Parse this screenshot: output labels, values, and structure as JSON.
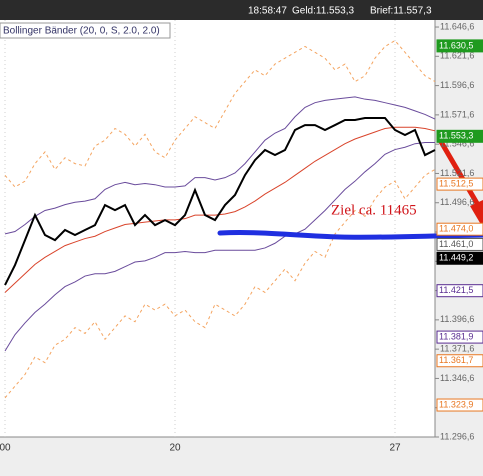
{
  "chart_data": {
    "type": "line",
    "header": [
      "18:58:47",
      "Geld:11.553,3",
      "Brief:11.557,3"
    ],
    "indicator_label": "Bollinger Bänder (20, 0, S, 2.0, 2.0)",
    "annotation": "Ziel ca. 11465",
    "categories": [
      "00",
      null,
      null,
      null,
      null,
      null,
      null,
      null,
      null,
      null,
      null,
      null,
      null,
      null,
      null,
      null,
      null,
      "20",
      null,
      null,
      null,
      null,
      null,
      null,
      null,
      null,
      null,
      null,
      null,
      null,
      null,
      null,
      null,
      null,
      null,
      null,
      null,
      null,
      null,
      "27",
      null,
      null,
      null,
      null
    ],
    "ylim": [
      11296.6,
      11652.6
    ],
    "yticks": [
      {
        "value": 11296.6,
        "label": "11.296,6"
      },
      {
        "value": 11321.6,
        "label": "11.321,6"
      },
      {
        "value": 11346.6,
        "label": "11.346,6"
      },
      {
        "value": 11371.6,
        "label": "11.371,6"
      },
      {
        "value": 11396.6,
        "label": "11.396,6"
      },
      {
        "value": 11421.6,
        "label": "11.421,6"
      },
      {
        "value": 11446.6,
        "label": "11.446,6"
      },
      {
        "value": 11471.6,
        "label": "11.471,6"
      },
      {
        "value": 11496.6,
        "label": "11.496,6"
      },
      {
        "value": 11521.6,
        "label": "11.521,6"
      },
      {
        "value": 11546.6,
        "label": "11.546,6"
      },
      {
        "value": 11571.6,
        "label": "11.571,6"
      },
      {
        "value": 11596.6,
        "label": "11.596,6"
      },
      {
        "value": 11621.6,
        "label": "11.621,6"
      },
      {
        "value": 11646.6,
        "label": "11.646,6"
      }
    ],
    "price_tags": [
      {
        "value": 11630.5,
        "label": "11.630,5",
        "color": "#1f9a1f",
        "filled": true
      },
      {
        "value": 11553.3,
        "label": "11.553,3",
        "color": "#1f9a1f",
        "filled": true
      },
      {
        "value": 11512.5,
        "label": "11.512,5",
        "color": "#e87722",
        "filled": false
      },
      {
        "value": 11474.0,
        "label": "11.474,0",
        "color": "#e87722",
        "filled": false
      },
      {
        "value": 11461.0,
        "label": "11.461,0",
        "color": "#555555",
        "filled": false
      },
      {
        "value": 11449.2,
        "label": "11.449,2",
        "color": "#000000",
        "filled": true
      },
      {
        "value": 11421.5,
        "label": "11.421,5",
        "color": "#5a2d91",
        "filled": false
      },
      {
        "value": 11381.9,
        "label": "11.381,9",
        "color": "#5a2d91",
        "filled": false
      },
      {
        "value": 11361.7,
        "label": "11.361,7",
        "color": "#e87722",
        "filled": false
      },
      {
        "value": 11323.9,
        "label": "11.323,9",
        "color": "#e87722",
        "filled": false
      }
    ],
    "series": [
      {
        "color": "#f4a460",
        "dash": true,
        "width": 1,
        "values": [
          11520,
          11510,
          11515,
          11530,
          11540,
          11525,
          11535,
          11530,
          11528,
          11545,
          11550,
          11560,
          11555,
          11545,
          11555,
          11540,
          11535,
          11550,
          11560,
          11570,
          11565,
          11560,
          11575,
          11590,
          11600,
          11610,
          11605,
          11615,
          11620,
          11625,
          11630,
          11625,
          11620,
          11610,
          11615,
          11600,
          11605,
          11620,
          11630,
          11635,
          11625,
          11615,
          11605,
          11600
        ]
      },
      {
        "color": "#f4a460",
        "dash": true,
        "width": 1,
        "values": [
          11330,
          11340,
          11350,
          11365,
          11360,
          11375,
          11380,
          11390,
          11385,
          11395,
          11380,
          11390,
          11400,
          11395,
          11410,
          11405,
          11410,
          11400,
          11405,
          11395,
          11390,
          11410,
          11405,
          11400,
          11410,
          11425,
          11420,
          11430,
          11440,
          11430,
          11445,
          11455,
          11450,
          11470,
          11480,
          11490,
          11485,
          11500,
          11510,
          11515,
          11500,
          11510,
          11520,
          11525
        ]
      },
      {
        "color": "#6a4c9c",
        "dash": false,
        "width": 1,
        "values": [
          11470,
          11472,
          11478,
          11485,
          11490,
          11492,
          11495,
          11497,
          11498,
          11500,
          11508,
          11512,
          11514,
          11512,
          11513,
          11512,
          11510,
          11510,
          11511,
          11518,
          11518,
          11516,
          11518,
          11522,
          11530,
          11540,
          11550,
          11556,
          11560,
          11570,
          11578,
          11582,
          11584,
          11585,
          11586,
          11587,
          11585,
          11584,
          11582,
          11580,
          11578,
          11575,
          11572,
          11568
        ]
      },
      {
        "color": "#6a4c9c",
        "dash": false,
        "width": 1,
        "values": [
          11370,
          11384,
          11394,
          11403,
          11410,
          11418,
          11425,
          11429,
          11434,
          11436,
          11436,
          11438,
          11442,
          11446,
          11447,
          11450,
          11454,
          11454,
          11455,
          11454,
          11454,
          11456,
          11456,
          11456,
          11456,
          11456,
          11458,
          11462,
          11468,
          11470,
          11474,
          11482,
          11490,
          11499,
          11508,
          11515,
          11523,
          11530,
          11538,
          11542,
          11544,
          11547,
          11548,
          11548
        ]
      },
      {
        "color": "#d9442b",
        "dash": false,
        "width": 1,
        "values": [
          11420,
          11428,
          11436,
          11444,
          11450,
          11455,
          11460,
          11463,
          11466,
          11468,
          11472,
          11475,
          11478,
          11479,
          11480,
          11481,
          11482,
          11482,
          11483,
          11486,
          11486,
          11486,
          11487,
          11489,
          11493,
          11498,
          11504,
          11509,
          11514,
          11520,
          11526,
          11532,
          11537,
          11542,
          11547,
          11551,
          11554,
          11557,
          11560,
          11561,
          11561,
          11561,
          11560,
          11558
        ]
      },
      {
        "color": "#000000",
        "dash": false,
        "width": 2,
        "values": [
          11426.3,
          11443.4,
          11464.7,
          11486.1,
          11469.0,
          11464.7,
          11473.3,
          11469.0,
          11473.3,
          11477.5,
          11494.6,
          11490.3,
          11494.6,
          11477.5,
          11486.1,
          11477.5,
          11481.8,
          11477.5,
          11486.1,
          11507.4,
          11486.1,
          11481.8,
          11494.6,
          11503.2,
          11520.2,
          11533.0,
          11541.6,
          11537.3,
          11541.6,
          11558.7,
          11562.9,
          11562.9,
          11558.7,
          11562.9,
          11567.2,
          11567.2,
          11568.9,
          11568.9,
          11568.9,
          11558.7,
          11554.4,
          11558.7,
          11537.3,
          11541.6
        ]
      }
    ]
  }
}
